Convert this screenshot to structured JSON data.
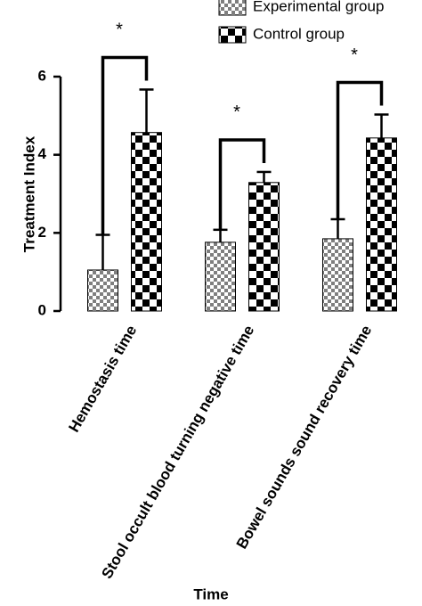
{
  "chart_data": {
    "type": "bar",
    "y_label": "Treatment Index",
    "x_label": "Time",
    "categories": [
      "Hemostasis time",
      "Stool occult blood turning negative time",
      "Bowel sounds sound recovery time"
    ],
    "series": [
      {
        "name": "Experimental group",
        "color": "#7f7f7f",
        "values": [
          1.05,
          1.76,
          1.85
        ],
        "errors": [
          0.9,
          0.32,
          0.5
        ]
      },
      {
        "name": "Control group",
        "color": "#000000",
        "values": [
          4.57,
          3.29,
          4.43
        ],
        "errors": [
          1.1,
          0.27,
          0.6
        ]
      }
    ],
    "significance": [
      "*",
      "*",
      "*"
    ],
    "ylim": [
      0,
      6
    ],
    "yticks": [
      0,
      2,
      4,
      6
    ],
    "grid": false
  }
}
